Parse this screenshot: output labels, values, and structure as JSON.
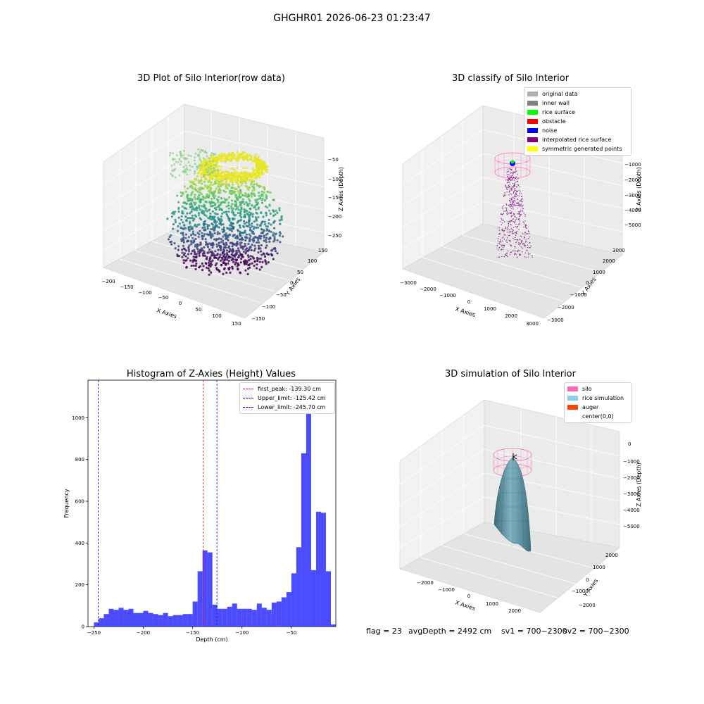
{
  "figure": {
    "suptitle": "GHGHR01 2026-06-23 01:23:47",
    "footer": {
      "flag": "flag = 23",
      "avg_depth": "avgDepth = 2492 cm",
      "sv1": "sv1 = 700~2300",
      "sv2": "sv2 = 700~2300"
    }
  },
  "chart_data": [
    {
      "type": "scatter",
      "title": "3D Plot of Silo Interior(row data)",
      "xlabel": "X Axies",
      "ylabel": "Y Axies",
      "zlabel": "Z Axies (Depth)",
      "x_ticks": [
        "−200",
        "−150",
        "−100",
        "−50",
        "0",
        "50",
        "100",
        "150"
      ],
      "y_ticks": [
        "−150",
        "−100",
        "−50",
        "0",
        "50",
        "100",
        "150"
      ],
      "z_ticks": [
        "−50",
        "−100",
        "−150",
        "−200",
        "−250"
      ],
      "xlim": [
        -200,
        150
      ],
      "ylim": [
        -150,
        150
      ],
      "zlim": [
        -270,
        -20
      ],
      "colormap": "viridis"
    },
    {
      "type": "scatter",
      "title": "3D classify of Silo Interior",
      "xlabel": "X Axies",
      "ylabel": "Y Axies",
      "zlabel": "Z Axies (Depth)",
      "x_ticks": [
        "−3000",
        "−2000",
        "−1000",
        "0",
        "1000",
        "2000",
        "3000"
      ],
      "y_ticks": [
        "−3000",
        "−2000",
        "−1000",
        "0",
        "1000",
        "2000",
        "3000"
      ],
      "z_ticks": [
        "0",
        "−1000",
        "−2000",
        "−3000",
        "−4000",
        "−5000"
      ],
      "legend": [
        {
          "label": "original data",
          "color": "#b0b0b0"
        },
        {
          "label": "inner wall",
          "color": "#808080"
        },
        {
          "label": "rice surface",
          "color": "#00ff00"
        },
        {
          "label": "obstacle",
          "color": "#ff0000"
        },
        {
          "label": "noise",
          "color": "#0000ff"
        },
        {
          "label": "interpolated rice surface",
          "color": "#800080"
        },
        {
          "label": "symmetric generated points",
          "color": "#ffff00"
        }
      ]
    },
    {
      "type": "bar",
      "title": "Histogram of Z-Axies (Height) Values",
      "xlabel": "Depth (cm)",
      "ylabel": "Frequency",
      "xlim": [
        -256,
        -5
      ],
      "ylim": [
        0,
        1180
      ],
      "x_ticks": [
        -250,
        -200,
        -150,
        -100,
        -50
      ],
      "x_tick_labels": [
        "−250",
        "−200",
        "−150",
        "−100",
        "−50"
      ],
      "y_ticks": [
        0,
        200,
        400,
        600,
        800,
        1000
      ],
      "y_tick_labels": [
        "0",
        "200",
        "400",
        "600",
        "800",
        "1000"
      ],
      "bar_color": "#0000ff",
      "bins": [
        -250,
        -245,
        -240,
        -235,
        -230,
        -225,
        -220,
        -215,
        -210,
        -205,
        -200,
        -195,
        -190,
        -185,
        -180,
        -175,
        -170,
        -165,
        -160,
        -155,
        -150,
        -145,
        -140,
        -135,
        -130,
        -125,
        -120,
        -115,
        -110,
        -105,
        -100,
        -95,
        -90,
        -85,
        -80,
        -75,
        -70,
        -65,
        -60,
        -55,
        -50,
        -45,
        -40,
        -35,
        -30,
        -25,
        -20,
        -15,
        -10
      ],
      "values": [
        20,
        40,
        60,
        85,
        80,
        90,
        80,
        85,
        65,
        65,
        75,
        65,
        60,
        55,
        65,
        50,
        55,
        55,
        60,
        60,
        120,
        265,
        365,
        355,
        105,
        85,
        85,
        95,
        110,
        85,
        85,
        85,
        80,
        110,
        90,
        80,
        115,
        120,
        140,
        165,
        255,
        380,
        830,
        1125,
        270,
        550,
        545,
        265,
        10
      ],
      "vlines": [
        {
          "label": "first_peak: -139.30 cm",
          "x": -139.3,
          "color": "#ff0000"
        },
        {
          "label": "Upper_limit: -125.42 cm",
          "x": -125.42,
          "color": "#0000ff"
        },
        {
          "label": "Lower_limit: -245.70 cm",
          "x": -245.7,
          "color": "#0000ff"
        }
      ]
    },
    {
      "type": "scatter",
      "title": "3D simulation of Silo Interior",
      "xlabel": "X Axies",
      "ylabel": "Y Axies",
      "zlabel": "Z Axies (Depth)",
      "x_ticks": [
        "−2000",
        "−1000",
        "0",
        "1000",
        "2000"
      ],
      "y_ticks": [
        "−2000",
        "−1000",
        "0",
        "1000",
        "2000"
      ],
      "z_ticks": [
        "0",
        "−1000",
        "−2000",
        "−3000",
        "−4000",
        "−5000"
      ],
      "legend": [
        {
          "label": "silo",
          "color": "#ff69b4"
        },
        {
          "label": "rice simulation",
          "color": "#87ceeb"
        },
        {
          "label": "auger",
          "color": "#ff4500"
        },
        {
          "label": "center(0,0)",
          "color": "#ffffff"
        }
      ]
    }
  ]
}
